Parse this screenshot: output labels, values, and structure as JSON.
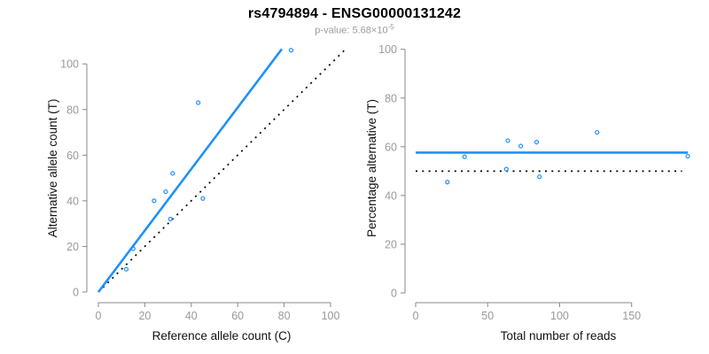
{
  "header": {
    "title": "rs4794894 - ENSG00000131242",
    "pvalue_text": "p-value: 5.68×10",
    "pvalue_exponent": "-5"
  },
  "colors": {
    "accent_blue": "#1e90ff",
    "dotted_black": "#000000",
    "axis_gray": "#888888",
    "tick_label_gray": "#9a9a9a"
  },
  "chart_data": [
    {
      "type": "scatter",
      "position": "left",
      "xlabel": "Reference allele count (C)",
      "ylabel": "Alternative allele count (T)",
      "xticks": [
        0,
        20,
        40,
        60,
        80,
        100
      ],
      "yticks": [
        0,
        20,
        40,
        60,
        80,
        100
      ],
      "xlim": [
        0,
        110
      ],
      "ylim": [
        0,
        110
      ],
      "grid": false,
      "legend": "none",
      "marker": "open-circle",
      "point_color": "#1e90ff",
      "points": [
        [
          12,
          10
        ],
        [
          15,
          19
        ],
        [
          31,
          32
        ],
        [
          24,
          40
        ],
        [
          29,
          44
        ],
        [
          32,
          52
        ],
        [
          45,
          41
        ],
        [
          43,
          83
        ],
        [
          83,
          106
        ]
      ],
      "lines": [
        {
          "name": "identity-line",
          "x1": 0,
          "y1": 0,
          "x2": 106,
          "y2": 106,
          "style": "dotted",
          "color": "#000000"
        },
        {
          "name": "fit-line",
          "x1": 0,
          "y1": 0,
          "x2": 79,
          "y2": 106.5,
          "style": "solid",
          "color": "#1e90ff"
        }
      ]
    },
    {
      "type": "scatter",
      "position": "right",
      "xlabel": "Total number of reads",
      "ylabel": "Percentage alternative (T)",
      "xticks": [
        0,
        50,
        100,
        150
      ],
      "yticks": [
        0,
        20,
        40,
        60,
        80,
        100
      ],
      "xlim": [
        0,
        196
      ],
      "ylim": [
        0,
        104
      ],
      "grid": false,
      "legend": "none",
      "marker": "open-circle",
      "point_color": "#1e90ff",
      "points": [
        [
          22,
          45.5
        ],
        [
          34,
          55.9
        ],
        [
          63,
          50.8
        ],
        [
          64,
          62.5
        ],
        [
          73,
          60.3
        ],
        [
          84,
          61.9
        ],
        [
          86,
          47.7
        ],
        [
          126,
          65.9
        ],
        [
          189,
          56.1
        ]
      ],
      "lines": [
        {
          "name": "null-line",
          "x1": 0,
          "y1": 50,
          "x2": 185,
          "y2": 50,
          "style": "dotted",
          "color": "#000000"
        },
        {
          "name": "mean-line",
          "x1": 0,
          "y1": 57.6,
          "x2": 189,
          "y2": 57.6,
          "style": "solid",
          "color": "#1e90ff"
        }
      ]
    }
  ]
}
